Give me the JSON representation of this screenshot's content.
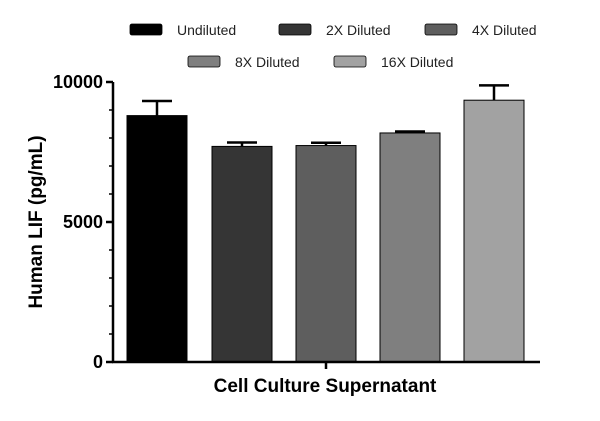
{
  "chart_data": {
    "type": "bar",
    "title": "",
    "xlabel": "Cell Culture Supernatant",
    "ylabel": "Human  LIF  (pg/mL)",
    "ylim": [
      0,
      10000
    ],
    "yticks": [
      0,
      5000,
      10000
    ],
    "ytick_labels": [
      "0",
      "5000",
      "10000"
    ],
    "categories": [
      "Undiluted",
      "2X Diluted",
      "4X Diluted",
      "8X Diluted",
      "16X Diluted"
    ],
    "values": [
      8800,
      7700,
      7730,
      8180,
      9350
    ],
    "errors": [
      520,
      140,
      100,
      50,
      530
    ],
    "colors": [
      "#000000",
      "#353535",
      "#5e5e5e",
      "#7f7f7f",
      "#a2a2a2"
    ],
    "legend": {
      "position": "top-center",
      "entries": [
        "Undiluted",
        "2X Diluted",
        "4X Diluted",
        "8X Diluted",
        "16X Diluted"
      ]
    }
  }
}
